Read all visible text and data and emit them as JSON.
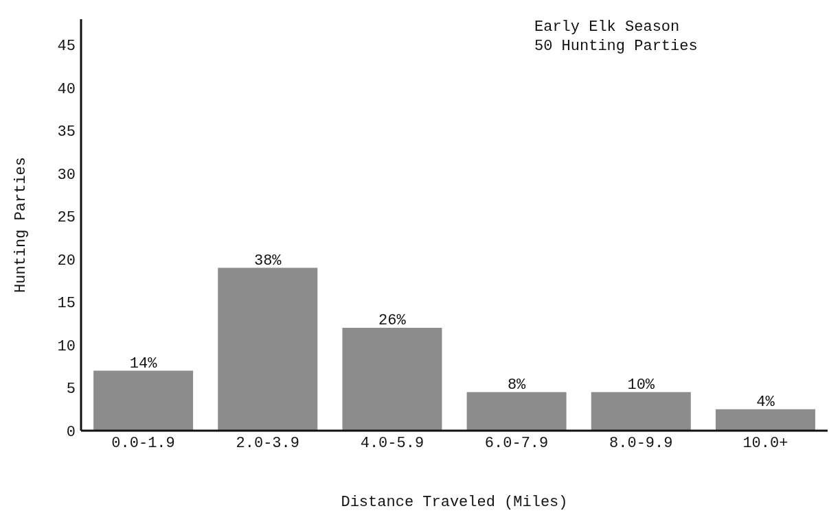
{
  "chart_data": {
    "type": "bar",
    "xlabel": "Distance Traveled (Miles)",
    "ylabel": "Hunting Parties",
    "annotations": [
      "Early Elk Season",
      "50 Hunting Parties",
      {
        "text": "14%",
        "x": "0.0-1.9",
        "y": 7
      },
      {
        "text": "38%",
        "x": "2.0-3.9",
        "y": 19
      },
      {
        "text": "26%",
        "x": "4.0-5.9",
        "y": 12
      },
      {
        "text": "8%",
        "x": "6.0-7.9",
        "y": 4.5
      },
      {
        "text": "10%",
        "x": "8.0-9.9",
        "y": 4.5
      },
      {
        "text": "4%",
        "x": "10.0+",
        "y": 2.5
      }
    ],
    "categories": [
      "0.0-1.9",
      "2.0-3.9",
      "4.0-5.9",
      "6.0-7.9",
      "8.0-9.9",
      "10.0+"
    ],
    "values": [
      7,
      19,
      12,
      4.5,
      4.5,
      2.5
    ],
    "color": "#8c8c8c",
    "ylim": [
      0,
      48
    ],
    "yticks": [
      0,
      5,
      10,
      15,
      20,
      25,
      30,
      35,
      40,
      45
    ],
    "grid": false,
    "legend": false
  }
}
